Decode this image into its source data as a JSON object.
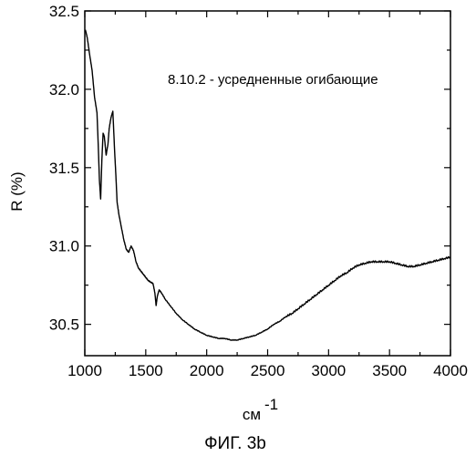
{
  "chart_data": {
    "type": "line",
    "title": "",
    "xlabel": "см",
    "xlabel_exponent": "-1",
    "ylabel": "R (%)",
    "xlim": [
      1000,
      4000
    ],
    "ylim": [
      30.3,
      32.5
    ],
    "x_ticks": [
      "1000",
      "1500",
      "2000",
      "2500",
      "3000",
      "3500",
      "4000"
    ],
    "y_ticks": [
      "30.5",
      "31.0",
      "31.5",
      "32.0",
      "32.5"
    ],
    "grid": false,
    "legend": "none",
    "annotation": "8.10.2 - усредненные огибающие",
    "line_color": "#000000",
    "series": [
      {
        "x": [
          1005,
          1020,
          1040,
          1060,
          1080,
          1100,
          1110,
          1120,
          1130,
          1140,
          1150,
          1160,
          1175,
          1190,
          1200,
          1215,
          1230,
          1245,
          1255,
          1265,
          1280,
          1300,
          1320,
          1340,
          1360,
          1380,
          1400,
          1420,
          1440,
          1460,
          1480,
          1500,
          1520,
          1540,
          1560,
          1575,
          1585,
          1595,
          1610,
          1630,
          1660,
          1700,
          1750,
          1800,
          1850,
          1900,
          1950,
          2000,
          2050,
          2100,
          2150,
          2200,
          2250,
          2300,
          2350,
          2400,
          2450,
          2500,
          2550,
          2600,
          2650,
          2700,
          2750,
          2800,
          2850,
          2900,
          2950,
          3000,
          3050,
          3100,
          3150,
          3200,
          3250,
          3300,
          3350,
          3400,
          3450,
          3500,
          3550,
          3600,
          3650,
          3700,
          3750,
          3800,
          3850,
          3900,
          3950,
          4000
        ],
        "y": [
          32.38,
          32.33,
          32.22,
          32.12,
          31.95,
          31.85,
          31.65,
          31.42,
          31.3,
          31.55,
          31.72,
          31.7,
          31.58,
          31.65,
          31.75,
          31.82,
          31.86,
          31.6,
          31.45,
          31.28,
          31.2,
          31.12,
          31.04,
          30.98,
          30.96,
          31.0,
          30.97,
          30.9,
          30.86,
          30.84,
          30.82,
          30.8,
          30.78,
          30.77,
          30.76,
          30.7,
          30.62,
          30.68,
          30.72,
          30.7,
          30.66,
          30.62,
          30.57,
          30.53,
          30.5,
          30.47,
          30.45,
          30.43,
          30.42,
          30.41,
          30.41,
          30.4,
          30.4,
          30.41,
          30.42,
          30.43,
          30.45,
          30.47,
          30.5,
          30.52,
          30.55,
          30.57,
          30.6,
          30.63,
          30.66,
          30.69,
          30.72,
          30.75,
          30.78,
          30.81,
          30.83,
          30.86,
          30.88,
          30.89,
          30.9,
          30.9,
          30.9,
          30.9,
          30.89,
          30.88,
          30.87,
          30.87,
          30.88,
          30.89,
          30.9,
          30.91,
          30.92,
          30.93
        ]
      }
    ]
  },
  "figure_caption": "ФИГ. 3b"
}
